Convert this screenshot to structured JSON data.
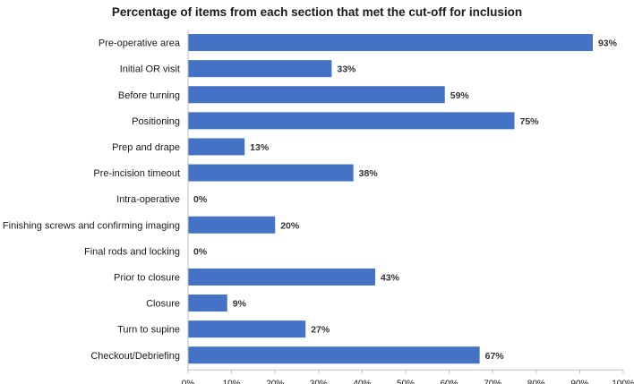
{
  "chart_data": {
    "type": "bar",
    "orientation": "horizontal",
    "title": "Percentage of items from each section that met the cut-off for inclusion",
    "xlabel": "",
    "ylabel": "",
    "categories": [
      "Pre-operative area",
      "Initial OR visit",
      "Before turning",
      "Positioning",
      "Prep and drape",
      "Pre-incision timeout",
      "Intra-operative",
      "Finishing screws and confirming imaging",
      "Final rods and locking",
      "Prior to closure",
      "Closure",
      "Turn to supine",
      "Checkout/Debriefing"
    ],
    "values": [
      93,
      33,
      59,
      75,
      13,
      38,
      0,
      20,
      0,
      43,
      9,
      27,
      67
    ],
    "data_labels": [
      "93%",
      "33%",
      "59%",
      "75%",
      "13%",
      "38%",
      "0%",
      "20%",
      "0%",
      "43%",
      "9%",
      "27%",
      "67%"
    ],
    "xlim": [
      0,
      100
    ],
    "x_ticks": [
      0,
      10,
      20,
      30,
      40,
      50,
      60,
      70,
      80,
      90,
      100
    ],
    "x_tick_labels": [
      "0%",
      "10%",
      "20%",
      "30%",
      "40%",
      "50%",
      "60%",
      "70%",
      "80%",
      "90%",
      "100%"
    ],
    "grid": false,
    "legend": "none",
    "bar_color": "#4472C4"
  }
}
